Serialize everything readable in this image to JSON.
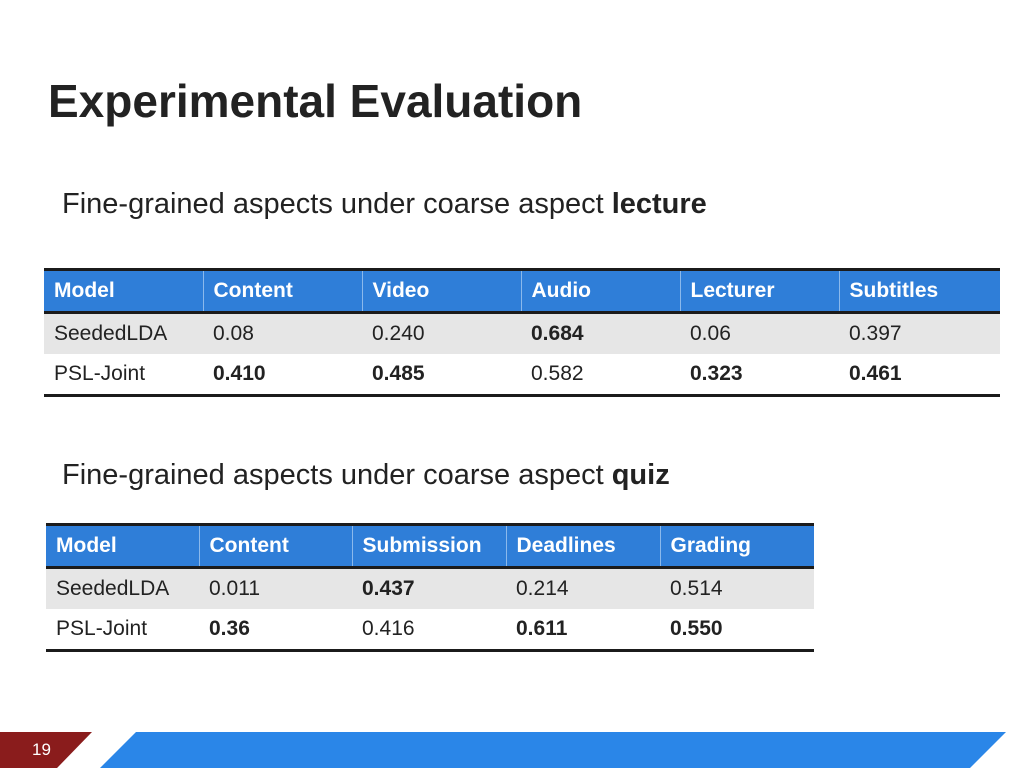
{
  "title": "Experimental Evaluation",
  "section1": {
    "caption_prefix": "Fine-grained aspects under coarse aspect ",
    "caption_aspect": "lecture",
    "columns": [
      "Model",
      "Content",
      "Video",
      "Audio",
      "Lecturer",
      "Subtitles"
    ],
    "rows": [
      {
        "model": "SeededLDA",
        "values": [
          "0.08",
          "0.240",
          "0.684",
          "0.06",
          "0.397"
        ]
      },
      {
        "model": "PSL-Joint",
        "values": [
          "0.410",
          "0.485",
          "0.582",
          "0.323",
          "0.461"
        ]
      }
    ]
  },
  "section2": {
    "caption_prefix": "Fine-grained aspects under coarse aspect ",
    "caption_aspect": "quiz",
    "columns": [
      "Model",
      "Content",
      "Submission",
      "Deadlines",
      "Grading"
    ],
    "rows": [
      {
        "model": "SeededLDA",
        "values": [
          "0.011",
          "0.437",
          "0.214",
          "0.514"
        ]
      },
      {
        "model": "PSL-Joint",
        "values": [
          "0.36",
          "0.416",
          "0.611",
          "0.550"
        ]
      }
    ]
  },
  "footer": {
    "slide_number": "19"
  },
  "colors": {
    "header_blue": "#2f7ed8",
    "footer_blue": "#2a86e8",
    "footer_red": "#8a1c1c",
    "row_shade": "#e6e6e6"
  }
}
